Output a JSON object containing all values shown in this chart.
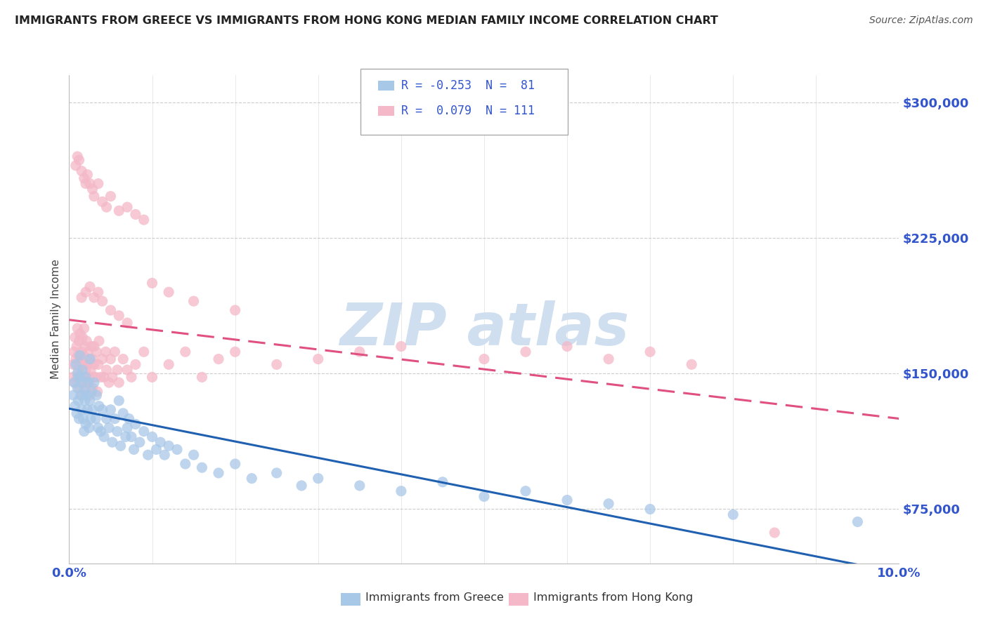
{
  "title": "IMMIGRANTS FROM GREECE VS IMMIGRANTS FROM HONG KONG MEDIAN FAMILY INCOME CORRELATION CHART",
  "source": "Source: ZipAtlas.com",
  "ylabel": "Median Family Income",
  "y_ticks": [
    75000,
    150000,
    225000,
    300000
  ],
  "y_tick_labels": [
    "$75,000",
    "$150,000",
    "$225,000",
    "$300,000"
  ],
  "xlim": [
    0.0,
    10.0
  ],
  "ylim": [
    45000,
    315000
  ],
  "legend_blue_r": "-0.253",
  "legend_blue_n": "81",
  "legend_pink_r": "0.079",
  "legend_pink_n": "111",
  "legend_label_blue": "Immigrants from Greece",
  "legend_label_pink": "Immigrants from Hong Kong",
  "color_blue": "#a8c8e8",
  "color_pink": "#f4b8c8",
  "color_blue_line": "#2060b0",
  "color_pink_line": "#e05080",
  "color_title": "#222222",
  "color_source": "#555555",
  "color_ytick": "#3355cc",
  "color_xtick": "#3355cc",
  "color_legend_text": "#3355cc",
  "watermark_color": "#d0dff0",
  "background_color": "#ffffff",
  "greece_x": [
    0.05,
    0.06,
    0.07,
    0.08,
    0.09,
    0.1,
    0.1,
    0.11,
    0.12,
    0.12,
    0.13,
    0.14,
    0.15,
    0.15,
    0.16,
    0.17,
    0.18,
    0.18,
    0.19,
    0.2,
    0.2,
    0.21,
    0.22,
    0.23,
    0.24,
    0.25,
    0.25,
    0.26,
    0.27,
    0.28,
    0.3,
    0.32,
    0.33,
    0.35,
    0.36,
    0.38,
    0.4,
    0.42,
    0.45,
    0.48,
    0.5,
    0.52,
    0.55,
    0.58,
    0.6,
    0.62,
    0.65,
    0.68,
    0.7,
    0.72,
    0.75,
    0.78,
    0.8,
    0.85,
    0.9,
    0.95,
    1.0,
    1.05,
    1.1,
    1.15,
    1.2,
    1.3,
    1.4,
    1.5,
    1.6,
    1.8,
    2.0,
    2.2,
    2.5,
    2.8,
    3.0,
    3.5,
    4.0,
    4.5,
    5.0,
    5.5,
    6.0,
    6.5,
    7.0,
    8.0,
    9.5
  ],
  "greece_y": [
    138000,
    145000,
    132000,
    155000,
    128000,
    142000,
    150000,
    135000,
    148000,
    125000,
    160000,
    138000,
    145000,
    130000,
    152000,
    125000,
    140000,
    118000,
    135000,
    148000,
    122000,
    138000,
    130000,
    145000,
    120000,
    135000,
    158000,
    125000,
    140000,
    130000,
    145000,
    125000,
    138000,
    120000,
    132000,
    118000,
    130000,
    115000,
    125000,
    120000,
    130000,
    112000,
    125000,
    118000,
    135000,
    110000,
    128000,
    115000,
    120000,
    125000,
    115000,
    108000,
    122000,
    112000,
    118000,
    105000,
    115000,
    108000,
    112000,
    105000,
    110000,
    108000,
    100000,
    105000,
    98000,
    95000,
    100000,
    92000,
    95000,
    88000,
    92000,
    88000,
    85000,
    90000,
    82000,
    85000,
    80000,
    78000,
    75000,
    72000,
    68000
  ],
  "hk_x": [
    0.04,
    0.05,
    0.06,
    0.07,
    0.07,
    0.08,
    0.09,
    0.1,
    0.1,
    0.11,
    0.11,
    0.12,
    0.12,
    0.13,
    0.13,
    0.14,
    0.15,
    0.15,
    0.16,
    0.16,
    0.17,
    0.17,
    0.18,
    0.18,
    0.19,
    0.19,
    0.2,
    0.2,
    0.21,
    0.22,
    0.22,
    0.23,
    0.24,
    0.25,
    0.25,
    0.26,
    0.27,
    0.28,
    0.28,
    0.29,
    0.3,
    0.3,
    0.32,
    0.33,
    0.34,
    0.35,
    0.36,
    0.38,
    0.4,
    0.42,
    0.44,
    0.45,
    0.48,
    0.5,
    0.52,
    0.55,
    0.58,
    0.6,
    0.65,
    0.7,
    0.75,
    0.8,
    0.9,
    1.0,
    1.2,
    1.4,
    1.6,
    1.8,
    2.0,
    2.5,
    3.0,
    3.5,
    4.0,
    5.0,
    5.5,
    6.0,
    6.5,
    7.0,
    7.5,
    8.5,
    0.08,
    0.1,
    0.12,
    0.15,
    0.18,
    0.2,
    0.22,
    0.25,
    0.28,
    0.3,
    0.35,
    0.4,
    0.45,
    0.5,
    0.6,
    0.7,
    0.8,
    0.9,
    1.0,
    1.2,
    1.5,
    2.0,
    0.15,
    0.2,
    0.25,
    0.3,
    0.35,
    0.4,
    0.5,
    0.6,
    0.7
  ],
  "hk_y": [
    148000,
    155000,
    162000,
    145000,
    170000,
    158000,
    165000,
    148000,
    175000,
    160000,
    152000,
    168000,
    142000,
    158000,
    172000,
    148000,
    162000,
    138000,
    155000,
    170000,
    145000,
    160000,
    148000,
    175000,
    155000,
    165000,
    152000,
    142000,
    168000,
    155000,
    145000,
    162000,
    148000,
    158000,
    138000,
    152000,
    165000,
    142000,
    158000,
    148000,
    155000,
    165000,
    148000,
    162000,
    140000,
    155000,
    168000,
    148000,
    158000,
    148000,
    162000,
    152000,
    145000,
    158000,
    148000,
    162000,
    152000,
    145000,
    158000,
    152000,
    148000,
    155000,
    162000,
    148000,
    155000,
    162000,
    148000,
    158000,
    162000,
    155000,
    158000,
    162000,
    165000,
    158000,
    162000,
    165000,
    158000,
    162000,
    155000,
    62000,
    265000,
    270000,
    268000,
    262000,
    258000,
    255000,
    260000,
    255000,
    252000,
    248000,
    255000,
    245000,
    242000,
    248000,
    240000,
    242000,
    238000,
    235000,
    200000,
    195000,
    190000,
    185000,
    192000,
    195000,
    198000,
    192000,
    195000,
    190000,
    185000,
    182000,
    178000
  ]
}
